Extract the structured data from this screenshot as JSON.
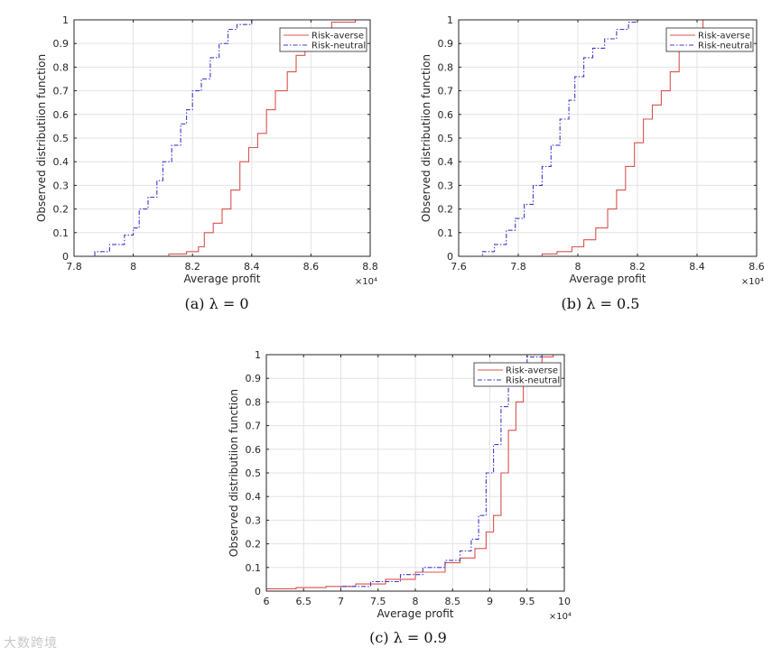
{
  "watermark": "大数跨境",
  "chart_data": [
    {
      "type": "line",
      "caption": "(a) λ = 0",
      "xlabel": "Average profit",
      "ylabel": "Observed distributiion function",
      "x_multiplier": "×10⁴",
      "xlim": [
        7.8,
        8.8
      ],
      "ylim": [
        0,
        1
      ],
      "xticks": [
        7.8,
        8.0,
        8.2,
        8.4,
        8.6,
        8.8
      ],
      "xtick_labels": [
        "7.8",
        "8",
        "8.2",
        "8.4",
        "8.6",
        "8.8"
      ],
      "yticks": [
        0,
        0.1,
        0.2,
        0.3,
        0.4,
        0.5,
        0.6,
        0.7,
        0.8,
        0.9,
        1
      ],
      "ytick_labels": [
        "0",
        "0.1",
        "0.2",
        "0.3",
        "0.4",
        "0.5",
        "0.6",
        "0.7",
        "0.8",
        "0.9",
        "1"
      ],
      "grid": true,
      "legend_position": "top-right",
      "series": [
        {
          "name": "Risk-averse",
          "color": "#d9534f",
          "style": "solid",
          "x": [
            8.05,
            8.12,
            8.18,
            8.22,
            8.24,
            8.27,
            8.3,
            8.33,
            8.36,
            8.39,
            8.42,
            8.45,
            8.48,
            8.52,
            8.55,
            8.58,
            8.62,
            8.67,
            8.75
          ],
          "y": [
            0.0,
            0.01,
            0.02,
            0.04,
            0.1,
            0.14,
            0.2,
            0.28,
            0.4,
            0.46,
            0.52,
            0.62,
            0.7,
            0.78,
            0.85,
            0.9,
            0.96,
            0.99,
            1.0
          ]
        },
        {
          "name": "Risk-neutral",
          "color": "#3b3bcc",
          "style": "dashdot",
          "x": [
            7.84,
            7.87,
            7.92,
            7.97,
            8.0,
            8.02,
            8.05,
            8.08,
            8.1,
            8.13,
            8.16,
            8.18,
            8.2,
            8.23,
            8.26,
            8.29,
            8.32,
            8.35,
            8.4,
            8.47
          ],
          "y": [
            0.0,
            0.02,
            0.05,
            0.09,
            0.12,
            0.2,
            0.25,
            0.32,
            0.4,
            0.47,
            0.56,
            0.62,
            0.7,
            0.75,
            0.84,
            0.9,
            0.96,
            0.98,
            1.0,
            1.0
          ]
        }
      ]
    },
    {
      "type": "line",
      "caption": "(b) λ = 0.5",
      "xlabel": "Average profit",
      "ylabel": "Observed distributiion function",
      "x_multiplier": "×10⁴",
      "xlim": [
        7.6,
        8.6
      ],
      "ylim": [
        0,
        1
      ],
      "xticks": [
        7.6,
        7.8,
        8.0,
        8.2,
        8.4,
        8.6
      ],
      "xtick_labels": [
        "7.6",
        "7.8",
        "8",
        "8.2",
        "8.4",
        "8.6"
      ],
      "yticks": [
        0,
        0.1,
        0.2,
        0.3,
        0.4,
        0.5,
        0.6,
        0.7,
        0.8,
        0.9,
        1
      ],
      "ytick_labels": [
        "0",
        "0.1",
        "0.2",
        "0.3",
        "0.4",
        "0.5",
        "0.6",
        "0.7",
        "0.8",
        "0.9",
        "1"
      ],
      "grid": true,
      "legend_position": "top-right",
      "series": [
        {
          "name": "Risk-averse",
          "color": "#d9534f",
          "style": "solid",
          "x": [
            7.82,
            7.88,
            7.93,
            7.98,
            8.02,
            8.06,
            8.1,
            8.13,
            8.16,
            8.19,
            8.22,
            8.25,
            8.28,
            8.31,
            8.34,
            8.37,
            8.42,
            8.47
          ],
          "y": [
            0.0,
            0.01,
            0.02,
            0.04,
            0.07,
            0.12,
            0.2,
            0.28,
            0.38,
            0.48,
            0.58,
            0.64,
            0.7,
            0.78,
            0.88,
            0.96,
            1.0,
            1.0
          ]
        },
        {
          "name": "Risk-neutral",
          "color": "#3b3bcc",
          "style": "dashdot",
          "x": [
            7.63,
            7.68,
            7.72,
            7.76,
            7.79,
            7.82,
            7.85,
            7.88,
            7.91,
            7.94,
            7.97,
            7.99,
            8.02,
            8.05,
            8.09,
            8.13,
            8.17,
            8.2
          ],
          "y": [
            0.0,
            0.02,
            0.05,
            0.11,
            0.16,
            0.22,
            0.3,
            0.38,
            0.47,
            0.58,
            0.66,
            0.76,
            0.84,
            0.88,
            0.92,
            0.96,
            0.99,
            1.0
          ]
        }
      ]
    },
    {
      "type": "line",
      "caption": "(c) λ = 0.9",
      "xlabel": "Average profit",
      "ylabel": "Observed distributiion function",
      "x_multiplier": "×10⁴",
      "xlim": [
        6,
        10
      ],
      "ylim": [
        0,
        1
      ],
      "xticks": [
        6,
        6.5,
        7,
        7.5,
        8,
        8.5,
        9,
        9.5,
        10
      ],
      "xtick_labels": [
        "6",
        "6.5",
        "7",
        "7.5",
        "8",
        "8.5",
        "9",
        "9.5",
        "10"
      ],
      "yticks": [
        0,
        0.1,
        0.2,
        0.3,
        0.4,
        0.5,
        0.6,
        0.7,
        0.8,
        0.9,
        1
      ],
      "ytick_labels": [
        "0",
        "0.1",
        "0.2",
        "0.3",
        "0.4",
        "0.5",
        "0.6",
        "0.7",
        "0.8",
        "0.9",
        "1"
      ],
      "grid": true,
      "legend_position": "top-right",
      "series": [
        {
          "name": "Risk-averse",
          "color": "#d9534f",
          "style": "solid",
          "x": [
            6.0,
            6.4,
            6.8,
            7.2,
            7.6,
            8.0,
            8.4,
            8.6,
            8.8,
            8.95,
            9.05,
            9.15,
            9.25,
            9.35,
            9.45,
            9.55,
            9.7,
            9.85
          ],
          "y": [
            0.01,
            0.015,
            0.02,
            0.03,
            0.05,
            0.08,
            0.12,
            0.14,
            0.18,
            0.25,
            0.32,
            0.5,
            0.68,
            0.8,
            0.9,
            0.96,
            0.99,
            1.0
          ]
        },
        {
          "name": "Risk-neutral",
          "color": "#3b3bcc",
          "style": "dashdot",
          "x": [
            6.7,
            7.0,
            7.4,
            7.8,
            8.1,
            8.4,
            8.6,
            8.75,
            8.85,
            8.95,
            9.05,
            9.15,
            9.25,
            9.35,
            9.5,
            9.7
          ],
          "y": [
            0.0,
            0.02,
            0.04,
            0.07,
            0.1,
            0.13,
            0.17,
            0.22,
            0.32,
            0.5,
            0.62,
            0.78,
            0.88,
            0.95,
            0.99,
            1.0
          ]
        }
      ]
    }
  ]
}
